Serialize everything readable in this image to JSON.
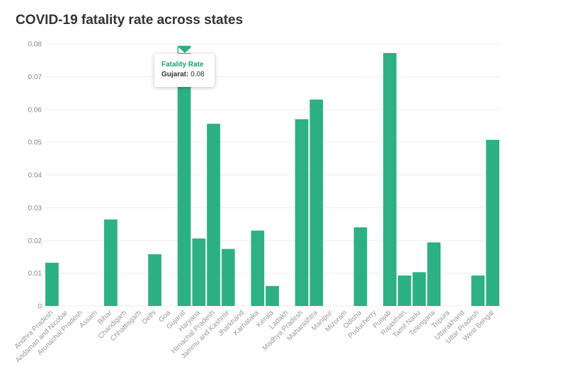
{
  "chart_data": {
    "type": "bar",
    "title": "COVID-19 fatality rate across states",
    "categories": [
      "Andhra Pradesh",
      "Andaman and Nicobar",
      "Arunachal Pradesh",
      "Assam",
      "Bihar",
      "Chandigarh",
      "Chhattisgarh",
      "Delhi",
      "Goa",
      "Gujarat",
      "Haryana",
      "Himachal Pradesh",
      "Jammu and Kashmir",
      "Jharkhand",
      "Karnataka",
      "Kerala",
      "Ladakh",
      "Madhya Pradesh",
      "Maharashtra",
      "Manipur",
      "Mizoram",
      "Odisha",
      "Puducherry",
      "Punjab",
      "Rajasthan",
      "Tamil Nadu",
      "Telengana",
      "Tripura",
      "Uttarakhand",
      "Uttar Pradesh",
      "West Bengal"
    ],
    "series": [
      {
        "name": "Fatality Rate",
        "values": [
          0.0132,
          0,
          0,
          0,
          0.0264,
          0,
          0,
          0.0158,
          0,
          0.0794,
          0.0206,
          0.0556,
          0.0174,
          0,
          0.023,
          0.0061,
          0,
          0.057,
          0.063,
          0,
          0,
          0.024,
          0,
          0.0772,
          0.0093,
          0.0103,
          0.0194,
          0,
          0,
          0.0093,
          0.0507
        ]
      }
    ],
    "y_ticks": [
      "0",
      "0.01",
      "0.02",
      "0.03",
      "0.04",
      "0.05",
      "0.06",
      "0.07",
      "0.08"
    ],
    "ylim": [
      0,
      0.08
    ],
    "grid": true,
    "color": "#2db084",
    "tooltip": {
      "title": "Fatality Rate",
      "state": "Gujarat:",
      "value": "0.08"
    }
  }
}
